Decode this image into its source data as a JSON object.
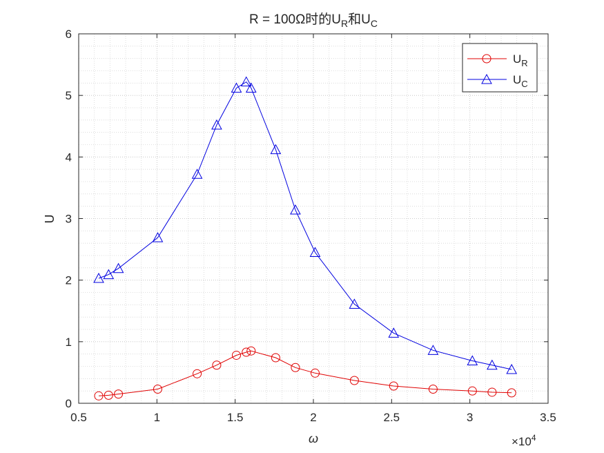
{
  "chart_data": {
    "type": "line",
    "title": {
      "prefix": "R = 100Ω时的U",
      "sub1": "R",
      "mid": "和U",
      "sub2": "C"
    },
    "xlabel": "ω",
    "ylabel": "U",
    "x_exponent_base": "×10",
    "x_exponent": "4",
    "xlim": [
      0.5,
      3.5
    ],
    "ylim": [
      0,
      6
    ],
    "xticks": [
      0.5,
      1,
      1.5,
      2,
      2.5,
      3,
      3.5
    ],
    "xtick_labels": [
      "0.5",
      "1",
      "1.5",
      "2",
      "2.5",
      "3",
      "3.5"
    ],
    "yticks": [
      0,
      1,
      2,
      3,
      4,
      5,
      6
    ],
    "ytick_labels": [
      "0",
      "1",
      "2",
      "3",
      "4",
      "5",
      "6"
    ],
    "grid": "major and minor, dotted",
    "legend_position": "top-right",
    "series": [
      {
        "name": "U",
        "name_sub": "R",
        "color": "#e00000",
        "marker": "circle",
        "x": [
          0.628,
          0.691,
          0.754,
          1.005,
          1.257,
          1.382,
          1.508,
          1.571,
          1.602,
          1.759,
          1.885,
          2.011,
          2.262,
          2.513,
          2.765,
          3.016,
          3.142,
          3.267
        ],
        "y": [
          0.12,
          0.13,
          0.15,
          0.23,
          0.48,
          0.62,
          0.78,
          0.83,
          0.85,
          0.74,
          0.58,
          0.49,
          0.37,
          0.28,
          0.23,
          0.2,
          0.18,
          0.17
        ]
      },
      {
        "name": "U",
        "name_sub": "C",
        "color": "#0000e0",
        "marker": "triangle",
        "x": [
          0.628,
          0.691,
          0.754,
          1.005,
          1.257,
          1.382,
          1.508,
          1.571,
          1.602,
          1.759,
          1.885,
          2.011,
          2.262,
          2.513,
          2.765,
          3.016,
          3.142,
          3.267
        ],
        "y": [
          2.03,
          2.09,
          2.19,
          2.69,
          3.72,
          4.52,
          5.12,
          5.22,
          5.12,
          4.12,
          3.14,
          2.45,
          1.61,
          1.14,
          0.86,
          0.69,
          0.62,
          0.55
        ]
      }
    ]
  }
}
